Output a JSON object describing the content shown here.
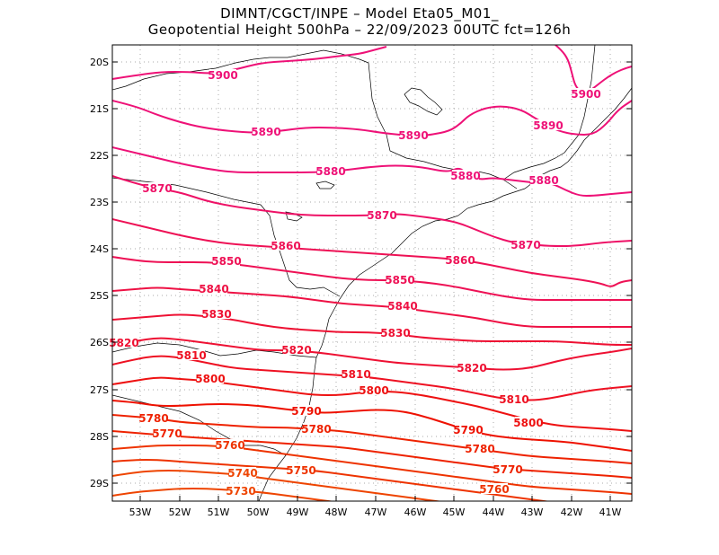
{
  "title": {
    "line1": "DIMNT/CGCT/INPE –  Model Eta05_M01_",
    "line2": "Geopotential Height 500hPa –  22/09/2023 00UTC fct=126h"
  },
  "map": {
    "lon_range": [
      -53.6,
      -40.5
    ],
    "lat_range": [
      -29.4,
      -19.7
    ],
    "lat_ticks": [
      "20S",
      "21S",
      "22S",
      "23S",
      "24S",
      "25S",
      "26S",
      "27S",
      "28S",
      "29S"
    ],
    "lon_ticks": [
      "53W",
      "52W",
      "51W",
      "50W",
      "49W",
      "48W",
      "47W",
      "46W",
      "45W",
      "44W",
      "43W",
      "42W",
      "41W"
    ],
    "colors": {
      "high": "#ee1177",
      "mid": "#ee1144",
      "low": "#ee3300",
      "grid": "#aaaaaa",
      "coast": "#000000"
    }
  },
  "contours": [
    {
      "value": 5900,
      "color": "#ee1177",
      "label": "5900"
    },
    {
      "value": 5890,
      "color": "#ee1177",
      "label": "5890"
    },
    {
      "value": 5880,
      "color": "#ee1177",
      "label": "5880"
    },
    {
      "value": 5870,
      "color": "#ee1166",
      "label": "5870"
    },
    {
      "value": 5860,
      "color": "#ee1155",
      "label": "5860"
    },
    {
      "value": 5850,
      "color": "#ee1155",
      "label": "5850"
    },
    {
      "value": 5840,
      "color": "#ee1144",
      "label": "5840"
    },
    {
      "value": 5830,
      "color": "#ee1133",
      "label": "5830"
    },
    {
      "value": 5820,
      "color": "#ee1133",
      "label": "5820"
    },
    {
      "value": 5810,
      "color": "#ee1122",
      "label": "5810"
    },
    {
      "value": 5800,
      "color": "#ee1111",
      "label": "5800"
    },
    {
      "value": 5790,
      "color": "#ee1100",
      "label": "5790"
    },
    {
      "value": 5780,
      "color": "#ee2200",
      "label": "5780"
    },
    {
      "value": 5770,
      "color": "#ee2200",
      "label": "5770"
    },
    {
      "value": 5760,
      "color": "#ee3300",
      "label": "5760"
    },
    {
      "value": 5750,
      "color": "#ee3300",
      "label": "5750"
    },
    {
      "value": 5740,
      "color": "#ee4400",
      "label": "5740"
    },
    {
      "value": 5730,
      "color": "#ee4400",
      "label": "5730"
    }
  ]
}
